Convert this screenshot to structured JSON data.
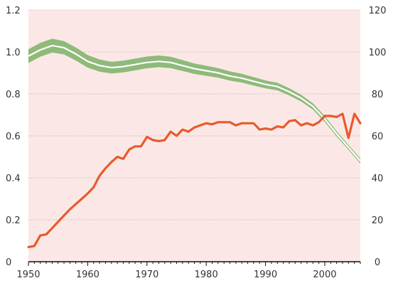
{
  "chart_data": {
    "type": "line",
    "title": "",
    "xlabel": "",
    "ylabel": "",
    "xlim": [
      1950,
      2006
    ],
    "ylim_left": [
      0,
      1.2
    ],
    "ylim_right": [
      0,
      120
    ],
    "x_ticks": [
      1950,
      1960,
      1970,
      1980,
      1990,
      2000
    ],
    "y_ticks_left": [
      "0",
      "0.2",
      "0.4",
      "0.6",
      "0.8",
      "1.0",
      "1.2"
    ],
    "y_ticks_right": [
      "0",
      "20",
      "40",
      "60",
      "80",
      "100",
      "120"
    ],
    "grid": "horizontal dotted",
    "colors": {
      "plot_background": "#fbe8e6",
      "band_fill": "#8fba7a",
      "band_center": "#ffffff",
      "orange_line": "#e85a2c",
      "grid": "#b8a8a8"
    },
    "series": [
      {
        "axis": "left",
        "style": "band",
        "x": [
          1950,
          1952,
          1954,
          1956,
          1958,
          1960,
          1962,
          1964,
          1966,
          1968,
          1970,
          1972,
          1974,
          1976,
          1978,
          1980,
          1982,
          1984,
          1986,
          1988,
          1990,
          1992,
          1994,
          1996,
          1998,
          2000,
          2002,
          2004,
          2006
        ],
        "center": [
          0.98,
          1.01,
          1.03,
          1.02,
          0.99,
          0.955,
          0.935,
          0.925,
          0.93,
          0.94,
          0.95,
          0.955,
          0.95,
          0.935,
          0.92,
          0.91,
          0.9,
          0.885,
          0.875,
          0.86,
          0.845,
          0.835,
          0.81,
          0.78,
          0.74,
          0.68,
          0.61,
          0.545,
          0.48
        ],
        "half_width": [
          0.033,
          0.033,
          0.033,
          0.032,
          0.031,
          0.03,
          0.029,
          0.028,
          0.028,
          0.028,
          0.028,
          0.028,
          0.027,
          0.026,
          0.025,
          0.024,
          0.023,
          0.022,
          0.021,
          0.02,
          0.019,
          0.018,
          0.017,
          0.016,
          0.015,
          0.014,
          0.013,
          0.012,
          0.012
        ]
      },
      {
        "axis": "right",
        "style": "line",
        "x": [
          1950,
          1951,
          1952,
          1953,
          1954,
          1955,
          1956,
          1957,
          1958,
          1959,
          1960,
          1961,
          1962,
          1963,
          1964,
          1965,
          1966,
          1967,
          1968,
          1969,
          1970,
          1971,
          1972,
          1973,
          1974,
          1975,
          1976,
          1977,
          1978,
          1979,
          1980,
          1981,
          1982,
          1983,
          1984,
          1985,
          1986,
          1987,
          1988,
          1989,
          1990,
          1991,
          1992,
          1993,
          1994,
          1995,
          1996,
          1997,
          1998,
          1999,
          2000,
          2001,
          2002,
          2003,
          2004,
          2005,
          2006
        ],
        "values": [
          7,
          7.5,
          12.5,
          13,
          16,
          19,
          22,
          25,
          27.5,
          30,
          32.5,
          35.5,
          41,
          44.5,
          47.5,
          50,
          49,
          53.5,
          55,
          55,
          59.5,
          58,
          57.5,
          58,
          62,
          60,
          63,
          62,
          64,
          65,
          66,
          65.5,
          66.5,
          66.5,
          66.5,
          65,
          66,
          66,
          66,
          63,
          63.5,
          63,
          64.5,
          64,
          67,
          67.5,
          65,
          66,
          65,
          66.5,
          69.5,
          69.5,
          69,
          70.5,
          59,
          70.5,
          66
        ]
      }
    ]
  }
}
